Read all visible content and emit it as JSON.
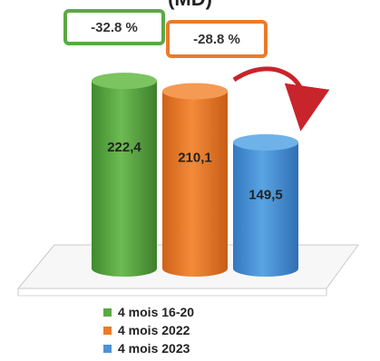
{
  "chart_data": {
    "type": "bar",
    "title_fragment": "(MD)",
    "categories": [
      "4 mois 16-20",
      "4 mois 2022",
      "4 mois 2023"
    ],
    "values": [
      222.4,
      210.1,
      149.5
    ],
    "value_labels": [
      "222,4",
      "210,1",
      "149,5"
    ],
    "colors": [
      "#5ba845",
      "#ec7a2a",
      "#4d93d5"
    ],
    "legend_position": "bottom",
    "annotations": [
      {
        "text": "-32.8 %",
        "color": "#5ba845"
      },
      {
        "text": "-28.8 %",
        "color": "#ec7a2a"
      }
    ],
    "arrow_color": "#c8242b"
  }
}
